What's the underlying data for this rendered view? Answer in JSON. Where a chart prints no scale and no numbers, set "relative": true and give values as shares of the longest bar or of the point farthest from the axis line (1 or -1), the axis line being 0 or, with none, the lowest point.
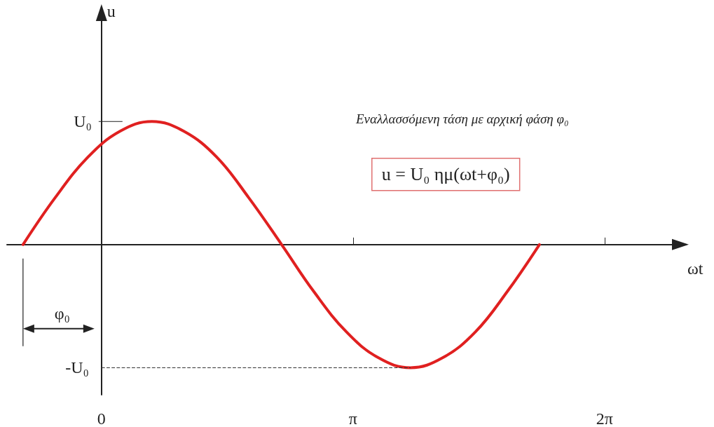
{
  "chart_data": {
    "type": "line",
    "xlabel": "ωt",
    "relative": true,
    "annotations": [
      "Εναλλασσόμενη τάση με αρχική φάση φ₀",
      "u = U₀ ημ(ωt+φ₀)",
      "φ₀",
      "U₀",
      "-U₀",
      "u"
    ],
    "series": [
      {
        "color": "#e02020",
        "x": [
          -0.98,
          -0.58,
          -0.17,
          0.23,
          0.63,
          1.03,
          1.44,
          1.84,
          2.25,
          2.65,
          3.06,
          3.46,
          3.86,
          4.26,
          4.67,
          5.07,
          5.47
        ],
        "values": [
          0,
          0.38,
          0.71,
          0.92,
          1,
          0.92,
          0.71,
          0.38,
          0,
          -0.38,
          -0.71,
          -0.92,
          -1,
          -0.92,
          -0.71,
          -0.38,
          0
        ]
      }
    ],
    "xlim": [
      -1.18,
      7.3
    ],
    "xticks": [
      0,
      {
        "value": 3.1416,
        "label": "π"
      },
      {
        "value": 6.2832,
        "label": "2π"
      }
    ],
    "ref_lines": [
      {
        "axis": "y",
        "value": -1,
        "label": null,
        "line_style": "dashed"
      }
    ],
    "marker": "none",
    "line_style": "solid"
  }
}
